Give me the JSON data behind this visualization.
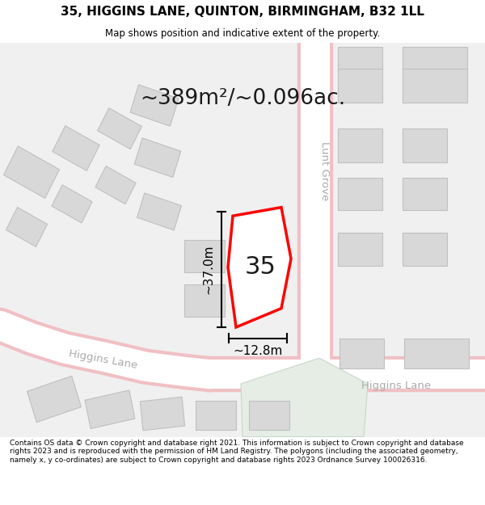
{
  "title": "35, HIGGINS LANE, QUINTON, BIRMINGHAM, B32 1LL",
  "subtitle": "Map shows position and indicative extent of the property.",
  "area_text": "~389m²/~0.096ac.",
  "number_label": "35",
  "dim_height": "~37.0m",
  "dim_width": "~12.8m",
  "street_lunt_grove": "Lunt Grove",
  "street_higgins_lane_diag": "Higgins Lane",
  "street_higgins_lane_horiz": "Higgins Lane",
  "footer": "Contains OS data © Crown copyright and database right 2021. This information is subject to Crown copyright and database rights 2023 and is reproduced with the permission of HM Land Registry. The polygons (including the associated geometry, namely x, y co-ordinates) are subject to Crown copyright and database rights 2023 Ordnance Survey 100026316.",
  "bg_color": "#ffffff",
  "map_bg": "#f0f0f0",
  "road_color": "#ffffff",
  "road_outline_color": "#f0c0c4",
  "building_fill": "#d8d8d8",
  "building_stroke": "#c0c0c0",
  "highlight_fill": "#ffffff",
  "highlight_stroke": "#ff0000",
  "green_fill": "#e5ede5",
  "dim_line_color": "#1a1a1a",
  "text_color": "#aaaaaa",
  "label_color": "#1a1a1a"
}
